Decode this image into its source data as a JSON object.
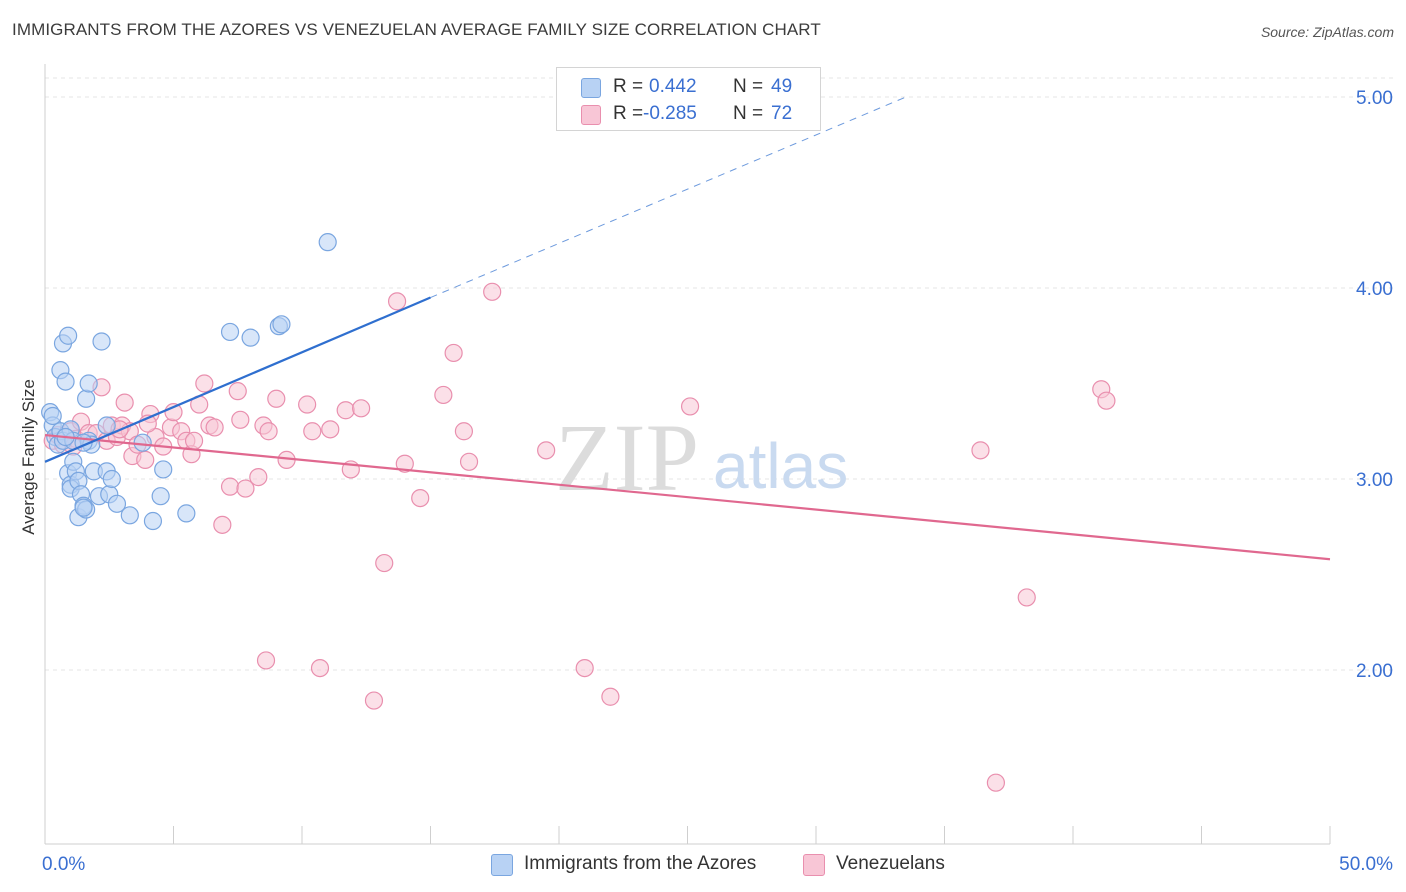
{
  "title": "IMMIGRANTS FROM THE AZORES VS VENEZUELAN AVERAGE FAMILY SIZE CORRELATION CHART",
  "source": "Source: ZipAtlas.com",
  "watermark": {
    "zip": "ZIP",
    "atlas": "atlas"
  },
  "legend": {
    "r_label": "R =",
    "n_label": "N =",
    "rows": [
      {
        "r": "0.442",
        "n": "49"
      },
      {
        "r": "-0.285",
        "n": "72"
      }
    ]
  },
  "colors": {
    "blue_fill": "#b8d2f4",
    "blue_stroke": "#7aa6e0",
    "blue_line": "#2f6fcf",
    "pink_fill": "#f8c6d6",
    "pink_stroke": "#e98fae",
    "pink_line": "#e0688f",
    "axis_text": "#3a6fd1",
    "grid": "#e4e4e4"
  },
  "chart_data": {
    "type": "scatter",
    "title": "IMMIGRANTS FROM THE AZORES VS VENEZUELAN AVERAGE FAMILY SIZE CORRELATION CHART",
    "xlabel": "",
    "ylabel": "Average Family Size",
    "xlim": [
      0,
      50
    ],
    "ylim": [
      1.0,
      5.2
    ],
    "x_tick_labels": [
      "0.0%",
      "50.0%"
    ],
    "y_ticks": [
      2.0,
      3.0,
      4.0,
      5.0
    ],
    "y_tick_labels": [
      "2.00",
      "3.00",
      "4.00",
      "5.00"
    ],
    "grid": true,
    "series": [
      {
        "name": "Immigrants from the Azores",
        "color": "#7aa6e0",
        "R": 0.442,
        "N": 49,
        "trend": {
          "x": [
            0,
            15
          ],
          "y": [
            3.09,
            3.95
          ],
          "extended": {
            "x": [
              15,
              33.5
            ],
            "y": [
              3.95,
              5.0
            ]
          }
        },
        "points": [
          [
            0.2,
            3.35
          ],
          [
            0.3,
            3.28
          ],
          [
            0.4,
            3.22
          ],
          [
            0.5,
            3.18
          ],
          [
            0.6,
            3.25
          ],
          [
            0.3,
            3.33
          ],
          [
            0.7,
            3.2
          ],
          [
            0.6,
            3.57
          ],
          [
            0.7,
            3.71
          ],
          [
            0.8,
            3.51
          ],
          [
            0.9,
            3.75
          ],
          [
            1.0,
            3.26
          ],
          [
            1.1,
            3.2
          ],
          [
            0.9,
            3.03
          ],
          [
            1.0,
            2.97
          ],
          [
            1.1,
            3.09
          ],
          [
            1.2,
            3.04
          ],
          [
            1.0,
            2.95
          ],
          [
            1.3,
            2.8
          ],
          [
            1.3,
            2.99
          ],
          [
            1.4,
            2.92
          ],
          [
            1.5,
            2.86
          ],
          [
            1.6,
            2.84
          ],
          [
            1.5,
            2.85
          ],
          [
            1.7,
            3.2
          ],
          [
            1.6,
            3.42
          ],
          [
            1.7,
            3.5
          ],
          [
            1.8,
            3.18
          ],
          [
            1.9,
            3.04
          ],
          [
            2.1,
            2.91
          ],
          [
            2.2,
            3.72
          ],
          [
            2.5,
            2.92
          ],
          [
            2.4,
            3.04
          ],
          [
            2.6,
            3.0
          ],
          [
            2.8,
            2.87
          ],
          [
            2.4,
            3.28
          ],
          [
            3.3,
            2.81
          ],
          [
            3.8,
            3.19
          ],
          [
            4.2,
            2.78
          ],
          [
            4.5,
            2.91
          ],
          [
            4.6,
            3.05
          ],
          [
            5.5,
            2.82
          ],
          [
            7.2,
            3.77
          ],
          [
            8.0,
            3.74
          ],
          [
            9.1,
            3.8
          ],
          [
            9.2,
            3.81
          ],
          [
            11.0,
            4.24
          ],
          [
            0.8,
            3.22
          ],
          [
            1.5,
            3.19
          ]
        ]
      },
      {
        "name": "Venezuelans",
        "color": "#e98fae",
        "R": -0.285,
        "N": 72,
        "trend": {
          "x": [
            0,
            50
          ],
          "y": [
            3.23,
            2.58
          ]
        },
        "points": [
          [
            0.3,
            3.2
          ],
          [
            0.5,
            3.23
          ],
          [
            0.7,
            3.18
          ],
          [
            0.8,
            3.22
          ],
          [
            1.0,
            3.25
          ],
          [
            1.2,
            3.21
          ],
          [
            1.4,
            3.3
          ],
          [
            1.7,
            3.24
          ],
          [
            2.0,
            3.24
          ],
          [
            2.2,
            3.48
          ],
          [
            2.4,
            3.2
          ],
          [
            2.6,
            3.28
          ],
          [
            2.8,
            3.22
          ],
          [
            3.0,
            3.28
          ],
          [
            3.1,
            3.4
          ],
          [
            3.3,
            3.25
          ],
          [
            3.4,
            3.12
          ],
          [
            3.6,
            3.18
          ],
          [
            3.9,
            3.1
          ],
          [
            4.1,
            3.34
          ],
          [
            4.3,
            3.22
          ],
          [
            4.6,
            3.17
          ],
          [
            4.9,
            3.27
          ],
          [
            5.0,
            3.35
          ],
          [
            5.3,
            3.25
          ],
          [
            5.5,
            3.2
          ],
          [
            5.7,
            3.13
          ],
          [
            6.0,
            3.39
          ],
          [
            6.2,
            3.5
          ],
          [
            6.4,
            3.28
          ],
          [
            6.6,
            3.27
          ],
          [
            6.9,
            2.76
          ],
          [
            7.2,
            2.96
          ],
          [
            7.5,
            3.46
          ],
          [
            7.6,
            3.31
          ],
          [
            7.8,
            2.95
          ],
          [
            8.3,
            3.01
          ],
          [
            8.5,
            3.28
          ],
          [
            8.7,
            3.25
          ],
          [
            9.0,
            3.42
          ],
          [
            9.4,
            3.1
          ],
          [
            10.2,
            3.39
          ],
          [
            10.4,
            3.25
          ],
          [
            11.1,
            3.26
          ],
          [
            11.7,
            3.36
          ],
          [
            11.9,
            3.05
          ],
          [
            12.3,
            3.37
          ],
          [
            13.2,
            2.56
          ],
          [
            13.7,
            3.93
          ],
          [
            14.0,
            3.08
          ],
          [
            14.6,
            2.9
          ],
          [
            15.5,
            3.44
          ],
          [
            15.9,
            3.66
          ],
          [
            16.3,
            3.25
          ],
          [
            16.5,
            3.09
          ],
          [
            17.4,
            3.98
          ],
          [
            19.5,
            3.15
          ],
          [
            21.0,
            2.01
          ],
          [
            22.0,
            1.86
          ],
          [
            25.1,
            3.38
          ],
          [
            8.6,
            2.05
          ],
          [
            10.7,
            2.01
          ],
          [
            12.8,
            1.84
          ],
          [
            36.4,
            3.15
          ],
          [
            38.2,
            2.38
          ],
          [
            41.1,
            3.47
          ],
          [
            41.3,
            3.41
          ],
          [
            37.0,
            1.41
          ],
          [
            4.0,
            3.29
          ],
          [
            5.8,
            3.2
          ],
          [
            2.9,
            3.26
          ],
          [
            1.1,
            3.17
          ]
        ]
      }
    ]
  }
}
